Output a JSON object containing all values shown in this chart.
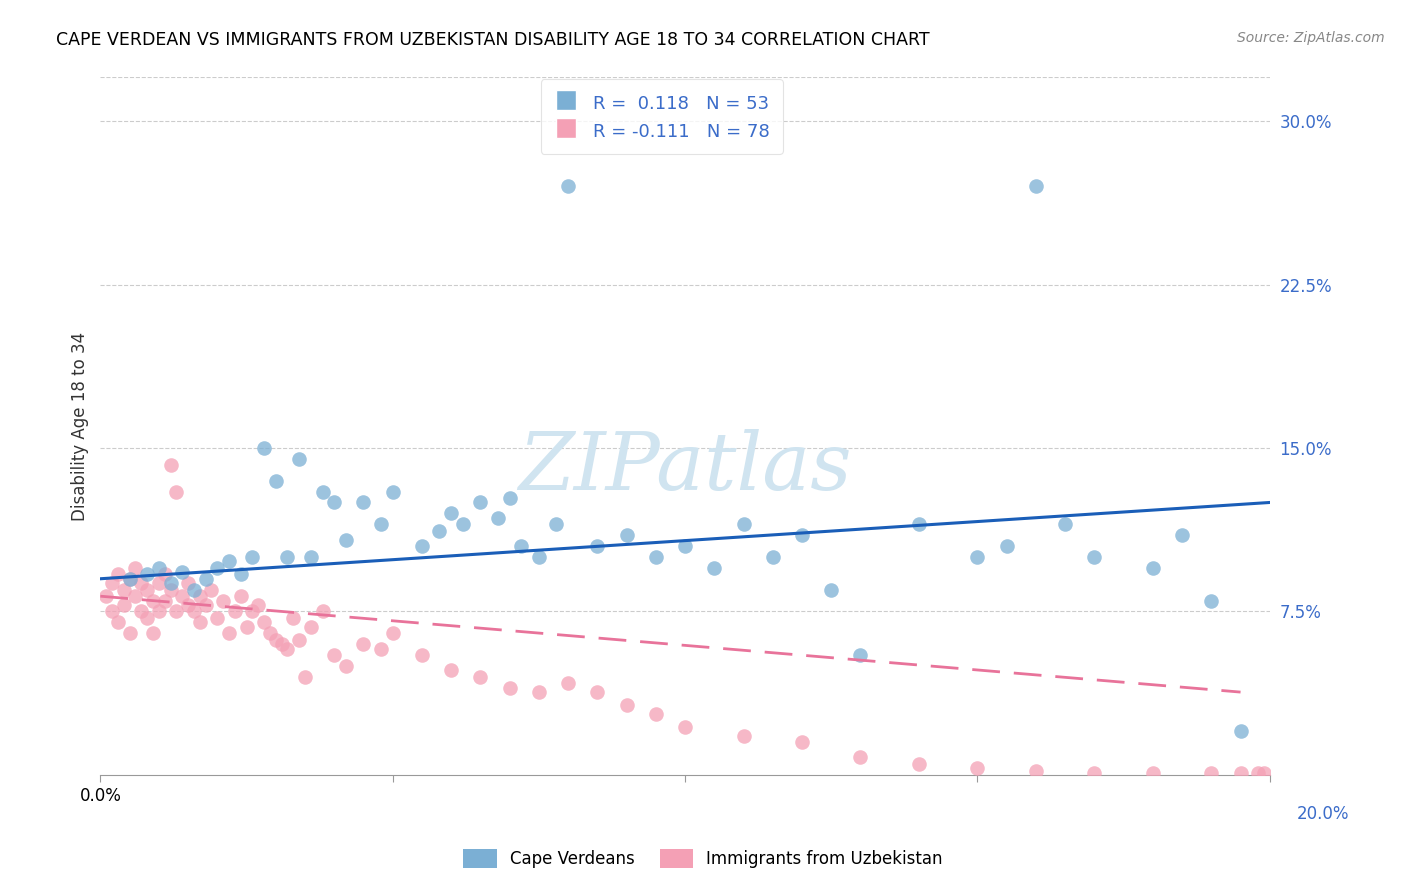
{
  "title": "CAPE VERDEAN VS IMMIGRANTS FROM UZBEKISTAN DISABILITY AGE 18 TO 34 CORRELATION CHART",
  "source": "Source: ZipAtlas.com",
  "ylabel": "Disability Age 18 to 34",
  "xlim": [
    0.0,
    0.2
  ],
  "ylim": [
    0.0,
    0.32
  ],
  "yticks_right": [
    0.075,
    0.15,
    0.225,
    0.3
  ],
  "ytick_labels_right": [
    "7.5%",
    "15.0%",
    "22.5%",
    "30.0%"
  ],
  "legend_r1": "R =  0.118",
  "legend_n1": "N = 53",
  "legend_r2": "R = -0.111",
  "legend_n2": "N = 78",
  "blue_color": "#7BAFD4",
  "pink_color": "#F4A0B5",
  "trend_blue": "#1A5EB8",
  "trend_pink": "#E8739A",
  "watermark": "ZIPatlas",
  "watermark_color": "#D0E4F0",
  "blue_scatter_x": [
    0.005,
    0.008,
    0.01,
    0.012,
    0.014,
    0.016,
    0.018,
    0.02,
    0.022,
    0.024,
    0.026,
    0.028,
    0.03,
    0.032,
    0.034,
    0.036,
    0.038,
    0.04,
    0.042,
    0.045,
    0.048,
    0.05,
    0.055,
    0.058,
    0.06,
    0.062,
    0.065,
    0.068,
    0.07,
    0.072,
    0.075,
    0.078,
    0.08,
    0.085,
    0.09,
    0.095,
    0.1,
    0.105,
    0.11,
    0.115,
    0.12,
    0.125,
    0.13,
    0.14,
    0.15,
    0.155,
    0.16,
    0.165,
    0.17,
    0.18,
    0.185,
    0.19,
    0.195
  ],
  "blue_scatter_y": [
    0.09,
    0.092,
    0.095,
    0.088,
    0.093,
    0.085,
    0.09,
    0.095,
    0.098,
    0.092,
    0.1,
    0.15,
    0.135,
    0.1,
    0.145,
    0.1,
    0.13,
    0.125,
    0.108,
    0.125,
    0.115,
    0.13,
    0.105,
    0.112,
    0.12,
    0.115,
    0.125,
    0.118,
    0.127,
    0.105,
    0.1,
    0.115,
    0.27,
    0.105,
    0.11,
    0.1,
    0.105,
    0.095,
    0.115,
    0.1,
    0.11,
    0.085,
    0.055,
    0.115,
    0.1,
    0.105,
    0.27,
    0.115,
    0.1,
    0.095,
    0.11,
    0.08,
    0.02
  ],
  "pink_scatter_x": [
    0.001,
    0.002,
    0.002,
    0.003,
    0.003,
    0.004,
    0.004,
    0.005,
    0.005,
    0.006,
    0.006,
    0.007,
    0.007,
    0.008,
    0.008,
    0.009,
    0.009,
    0.01,
    0.01,
    0.011,
    0.011,
    0.012,
    0.012,
    0.013,
    0.013,
    0.014,
    0.015,
    0.015,
    0.016,
    0.017,
    0.017,
    0.018,
    0.019,
    0.02,
    0.021,
    0.022,
    0.023,
    0.024,
    0.025,
    0.026,
    0.027,
    0.028,
    0.029,
    0.03,
    0.031,
    0.032,
    0.033,
    0.034,
    0.035,
    0.036,
    0.038,
    0.04,
    0.042,
    0.045,
    0.048,
    0.05,
    0.055,
    0.06,
    0.065,
    0.07,
    0.075,
    0.08,
    0.085,
    0.09,
    0.095,
    0.1,
    0.11,
    0.12,
    0.13,
    0.14,
    0.15,
    0.16,
    0.17,
    0.18,
    0.19,
    0.195,
    0.198,
    0.199
  ],
  "pink_scatter_y": [
    0.082,
    0.075,
    0.088,
    0.07,
    0.092,
    0.078,
    0.085,
    0.065,
    0.09,
    0.082,
    0.095,
    0.075,
    0.088,
    0.072,
    0.085,
    0.08,
    0.065,
    0.088,
    0.075,
    0.092,
    0.08,
    0.085,
    0.142,
    0.13,
    0.075,
    0.082,
    0.078,
    0.088,
    0.075,
    0.082,
    0.07,
    0.078,
    0.085,
    0.072,
    0.08,
    0.065,
    0.075,
    0.082,
    0.068,
    0.075,
    0.078,
    0.07,
    0.065,
    0.062,
    0.06,
    0.058,
    0.072,
    0.062,
    0.045,
    0.068,
    0.075,
    0.055,
    0.05,
    0.06,
    0.058,
    0.065,
    0.055,
    0.048,
    0.045,
    0.04,
    0.038,
    0.042,
    0.038,
    0.032,
    0.028,
    0.022,
    0.018,
    0.015,
    0.008,
    0.005,
    0.003,
    0.002,
    0.001,
    0.001,
    0.001,
    0.001,
    0.001,
    0.001
  ],
  "blue_trend_x": [
    0.0,
    0.2
  ],
  "blue_trend_y": [
    0.09,
    0.125
  ],
  "pink_trend_x": [
    0.0,
    0.195
  ],
  "pink_trend_y": [
    0.082,
    0.038
  ],
  "legend_label_1": "Cape Verdeans",
  "legend_label_2": "Immigrants from Uzbekistan"
}
